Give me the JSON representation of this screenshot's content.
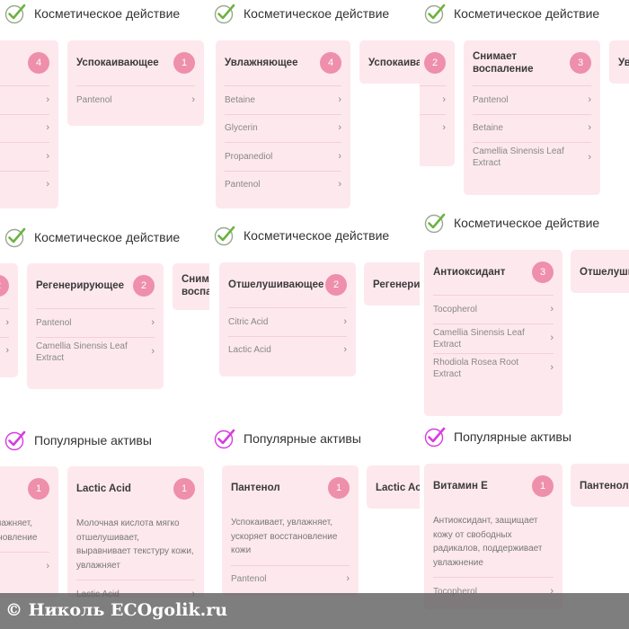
{
  "colors": {
    "card": "#fde8ee",
    "badge": "#ee8fab",
    "check_green": "#6cb33f",
    "check_magenta": "#d63ce0"
  },
  "tiles": [
    {
      "header": {
        "icon": "check-circle-green",
        "text": "Косметическое действие"
      },
      "cards": [
        {
          "title": "",
          "badge": "4",
          "rows": [
            "",
            "",
            "",
            ""
          ]
        },
        {
          "title": "Успокаивающее",
          "badge": "1",
          "rows": [
            "Pantenol"
          ]
        }
      ]
    },
    {
      "header": {
        "icon": "check-circle-green",
        "text": "Косметическое действие"
      },
      "cards": [
        {
          "title": "Увлажняющее",
          "badge": "4",
          "rows": [
            "Betaine",
            "Glycerin",
            "Propanediol",
            "Pantenol"
          ]
        },
        {
          "title": "Успокаивающее",
          "badge": "",
          "rows": []
        }
      ]
    },
    {
      "header": {
        "icon": "check-circle-green",
        "text": "Косметическое действие"
      },
      "cards": [
        {
          "title": "",
          "badge": "2",
          "rows": [
            "",
            ""
          ]
        },
        {
          "title": "Снимает воспаление",
          "badge": "3",
          "rows": [
            "Pantenol",
            "Betaine",
            "Camellia Sinensis Leaf Extract"
          ]
        },
        {
          "title": "Увлажняющее",
          "badge": "",
          "rows": []
        }
      ]
    },
    {
      "header": {
        "icon": "check-circle-green",
        "text": "Косметическое действие"
      },
      "cards": [
        {
          "title": "",
          "badge": "2",
          "rows": [
            "",
            ""
          ]
        },
        {
          "title": "Регенерирующее",
          "badge": "2",
          "rows": [
            "Pantenol",
            "Camellia Sinensis Leaf Extract"
          ]
        },
        {
          "title": "Снимает воспаление",
          "badge": "",
          "rows": []
        }
      ]
    },
    {
      "header": {
        "icon": "check-circle-green",
        "text": "Косметическое действие"
      },
      "cards": [
        {
          "title": "Отшелушивающее",
          "badge": "2",
          "rows": [
            "Citric Acid",
            "Lactic Acid"
          ]
        },
        {
          "title": "Регенерирующее",
          "badge": "",
          "rows": []
        }
      ]
    },
    {
      "header": {
        "icon": "check-circle-green",
        "text": "Косметическое действие"
      },
      "cards": [
        {
          "title": "Антиоксидант",
          "badge": "3",
          "rows": [
            "Tocopherol",
            "Camellia Sinensis Leaf Extract",
            "Rhodiola Rosea Root Extract"
          ]
        },
        {
          "title": "Отшелушивающее",
          "badge": "",
          "rows": []
        }
      ]
    },
    {
      "header": {
        "icon": "check-circle-magenta",
        "text": "Популярные активы"
      },
      "cards": [
        {
          "title": "",
          "badge": "1",
          "desc": "Успокаивает, увлажняет, ускоряет восстановление",
          "rows": [
            ""
          ]
        },
        {
          "title": "Lactic Acid",
          "badge": "1",
          "desc": "Молочная кислота мягко отшелушивает, выравнивает текстуру кожи, увлажняет",
          "rows": [
            "Lactic Acid"
          ]
        }
      ]
    },
    {
      "header": {
        "icon": "check-circle-magenta",
        "text": "Популярные активы"
      },
      "cards": [
        {
          "title": "Пантенол",
          "badge": "1",
          "desc": "Успокаивает, увлажняет, ускоряет восстановление кожи",
          "rows": [
            "Pantenol"
          ]
        },
        {
          "title": "Lactic Acid",
          "badge": "",
          "rows": []
        }
      ]
    },
    {
      "header": {
        "icon": "check-circle-magenta",
        "text": "Популярные активы"
      },
      "cards": [
        {
          "title": "Витамин Е",
          "badge": "1",
          "desc": "Антиоксидант, защищает кожу от свободных радикалов, поддерживает увлажнение",
          "rows": [
            "Tocopherol"
          ]
        },
        {
          "title": "Пантенол",
          "badge": "",
          "rows": []
        }
      ]
    }
  ],
  "watermark": "© Николь ECOgolik.ru"
}
